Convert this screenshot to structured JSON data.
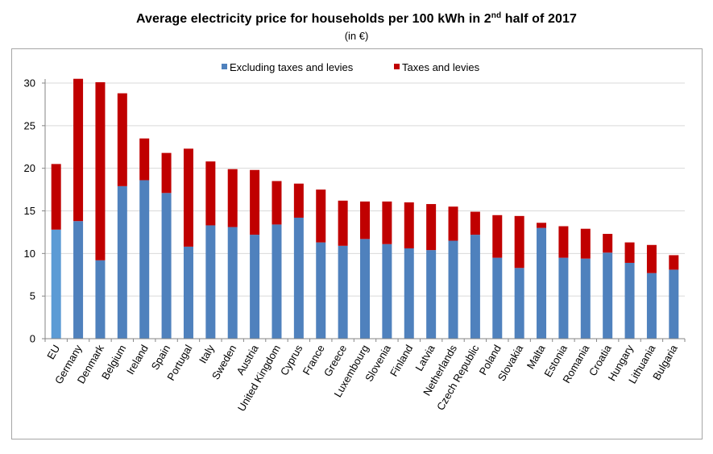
{
  "title_main": "Average electricity price for households per 100 kWh in 2",
  "title_sup": "nd",
  "title_end": " half of 2017",
  "subtitle": "(in €)",
  "colors": {
    "excl_eu": "#5b9bd5",
    "excl": "#4f81bd",
    "taxes": "#c00000",
    "grid": "#d9d9d9",
    "axis": "#868686"
  },
  "chart_data": {
    "type": "bar",
    "stacked": true,
    "ylim": [
      0,
      30
    ],
    "yticks": [
      0,
      5,
      10,
      15,
      20,
      25,
      30
    ],
    "grid": true,
    "legend_position": "top-center",
    "categories": [
      "EU",
      "Germany",
      "Denmark",
      "Belgium",
      "Ireland",
      "Spain",
      "Portugal",
      "Italy",
      "Sweden",
      "Austria",
      "United Kingdom",
      "Cyprus",
      "France",
      "Greece",
      "Luxembourg",
      "Slovenia",
      "Finland",
      "Latvia",
      "Netherlands",
      "Czech Republic",
      "Poland",
      "Slovakia",
      "Malta",
      "Estonia",
      "Romania",
      "Croatia",
      "Hungary",
      "Lithuania",
      "Bulgaria"
    ],
    "series": [
      {
        "name": "Excluding taxes and levies",
        "values": [
          12.8,
          13.8,
          9.2,
          17.9,
          18.6,
          17.1,
          10.8,
          13.3,
          13.1,
          12.2,
          13.4,
          14.2,
          11.3,
          10.9,
          11.7,
          11.1,
          10.6,
          10.4,
          11.5,
          12.2,
          9.5,
          8.3,
          13.0,
          9.5,
          9.4,
          10.1,
          8.9,
          7.7,
          8.1
        ]
      },
      {
        "name": "Taxes and levies",
        "values": [
          7.7,
          16.7,
          20.9,
          10.9,
          4.9,
          4.7,
          11.5,
          7.5,
          6.8,
          7.6,
          5.1,
          4.0,
          6.2,
          5.3,
          4.4,
          5.0,
          5.4,
          5.4,
          4.0,
          2.7,
          5.0,
          6.1,
          0.6,
          3.7,
          3.5,
          2.2,
          2.4,
          3.3,
          1.7
        ]
      }
    ]
  }
}
